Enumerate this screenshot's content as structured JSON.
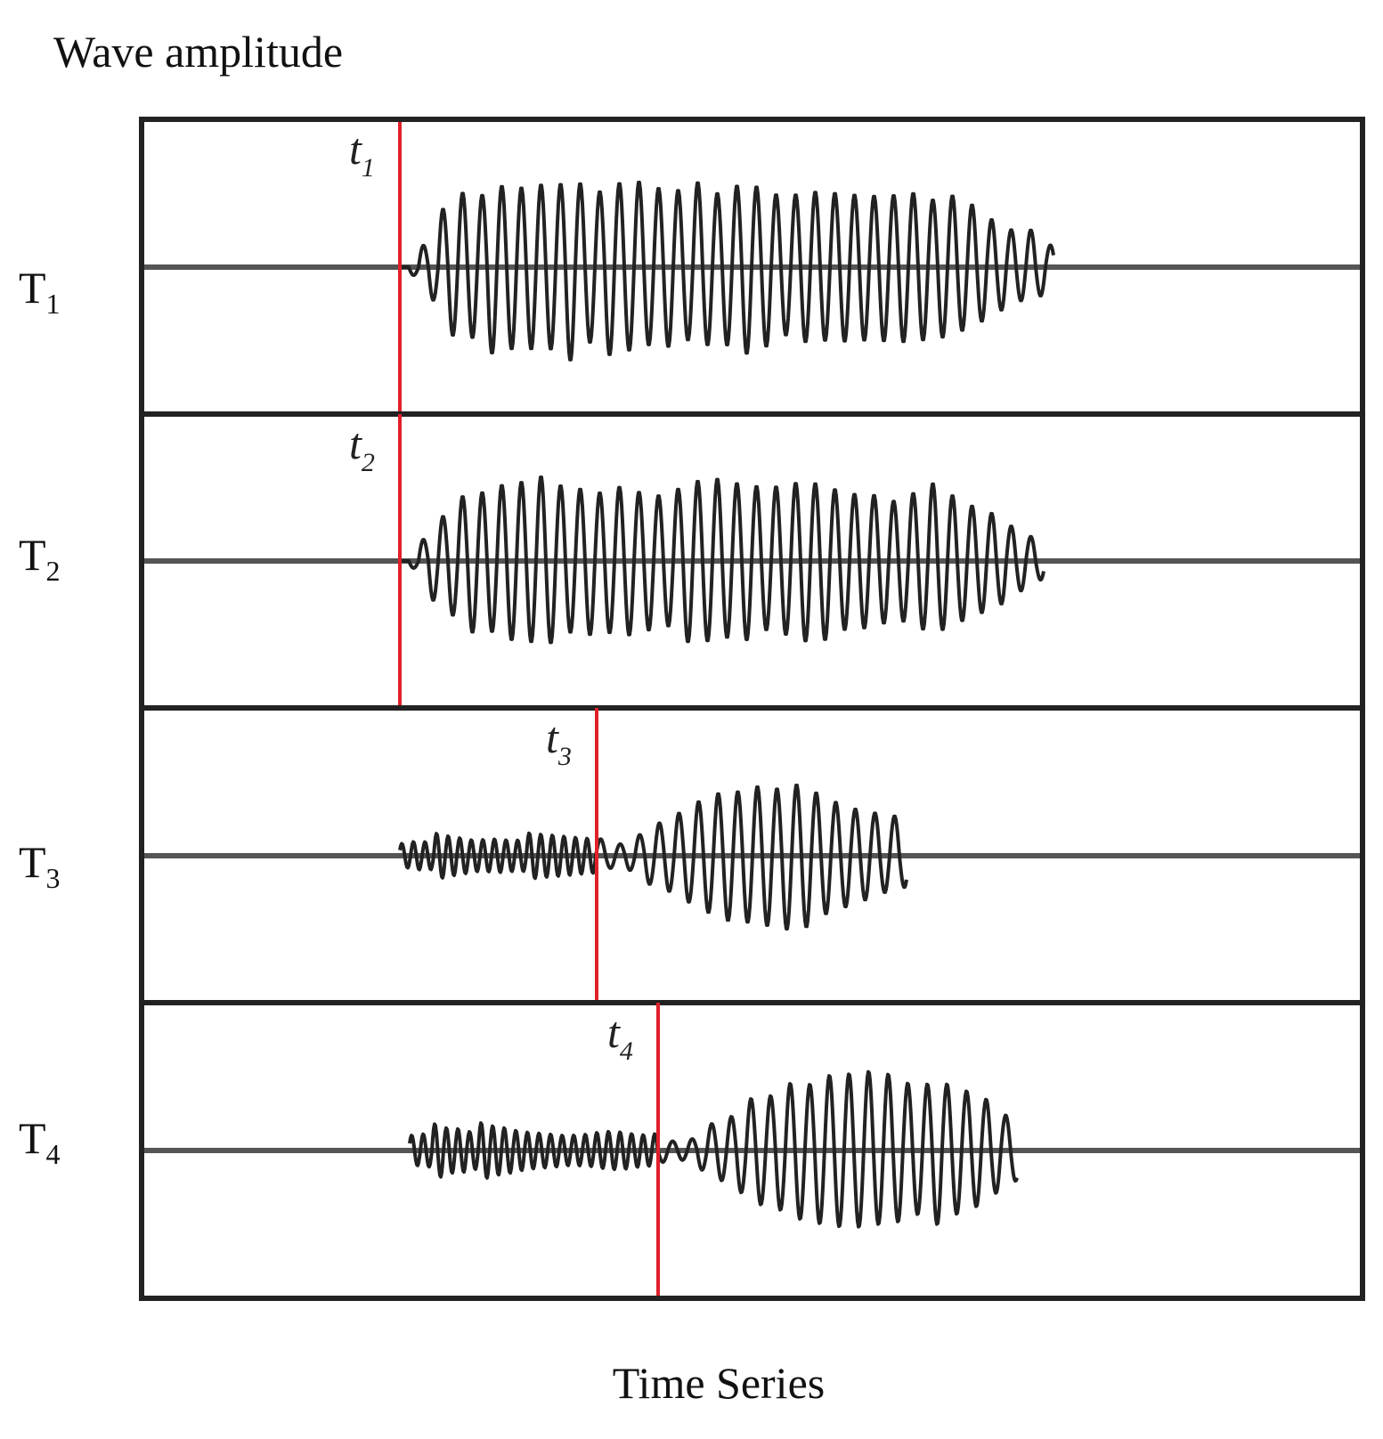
{
  "title": "Wave amplitude",
  "x_label": "Time Series",
  "traces": [
    {
      "label": "T",
      "label_subscript": "1",
      "arrival": "t",
      "arrival_subscript": "1"
    },
    {
      "label": "T",
      "label_subscript": "2",
      "arrival": "t",
      "arrival_subscript": "2"
    },
    {
      "label": "T",
      "label_subscript": "3",
      "arrival": "t",
      "arrival_subscript": "3"
    },
    {
      "label": "T",
      "label_subscript": "4",
      "arrival": "t",
      "arrival_subscript": "4"
    }
  ]
}
